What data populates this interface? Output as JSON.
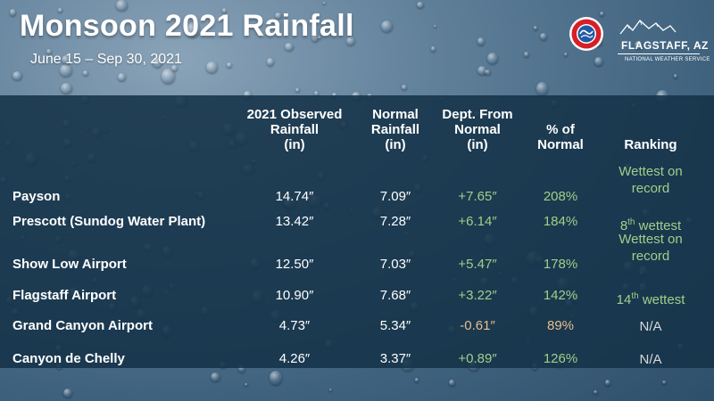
{
  "title": "Monsoon 2021 Rainfall",
  "subtitle": "June 15 – Sep 30, 2021",
  "logo": {
    "office": "FLAGSTAFF, AZ",
    "agency": "NATIONAL WEATHER SERVICE",
    "seal_text": "NATIONAL WEATHER SERVICE"
  },
  "headers": {
    "observed": [
      "2021 Observed",
      "Rainfall",
      "(in)"
    ],
    "normal": [
      "Normal",
      "Rainfall",
      "(in)"
    ],
    "departure": [
      "Dept. From",
      "Normal",
      "(in)"
    ],
    "percent": [
      "% of",
      "Normal"
    ],
    "ranking": [
      "Ranking"
    ]
  },
  "rows": [
    {
      "location": "Payson",
      "observed": "14.74″",
      "normal": "7.09″",
      "departure": "+7.65″",
      "percent": "208%",
      "rank_lines": [
        "Wettest on",
        "record"
      ],
      "rank_suffix": ""
    },
    {
      "location": "Prescott (Sundog Water Plant)",
      "observed": "13.42″",
      "normal": "7.28″",
      "departure": "+6.14″",
      "percent": "184%",
      "rank_lines": [
        "8"
      ],
      "rank_sup": "th",
      "rank_suffix": " wettest"
    },
    {
      "location": "Show Low Airport",
      "observed": "12.50″",
      "normal": "7.03″",
      "departure": "+5.47″",
      "percent": "178%",
      "rank_lines": [
        "Wettest on",
        "record"
      ],
      "rank_suffix": ""
    },
    {
      "location": "Flagstaff Airport",
      "observed": "10.90″",
      "normal": "7.68″",
      "departure": "+3.22″",
      "percent": "142%",
      "rank_lines": [
        "14"
      ],
      "rank_sup": "th",
      "rank_suffix": " wettest"
    },
    {
      "location": "Grand Canyon Airport",
      "observed": "4.73″",
      "normal": "5.34″",
      "departure": "-0.61″",
      "percent": "89%",
      "rank_lines": [
        "N/A"
      ],
      "rank_suffix": ""
    },
    {
      "location": "Canyon de Chelly",
      "observed": "4.26″",
      "normal": "3.37″",
      "departure": "+0.89″",
      "percent": "126%",
      "rank_lines": [
        "N/A"
      ],
      "rank_suffix": ""
    }
  ],
  "colors": {
    "positive": "#9fd08a",
    "below_normal": "#e5bf8c",
    "na": "#d8d8d8",
    "panel": "#14324a"
  }
}
